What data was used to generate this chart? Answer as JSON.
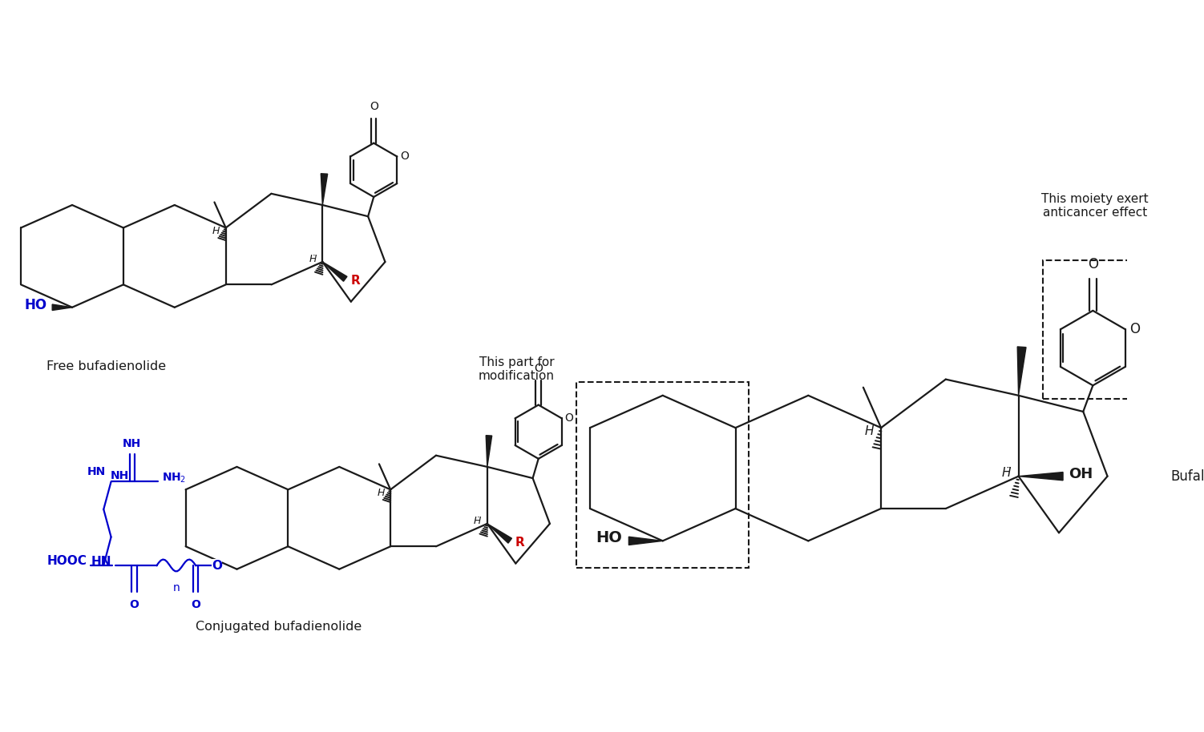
{
  "background_color": "#ffffff",
  "fig_width": 15.02,
  "fig_height": 9.14,
  "labels": {
    "free_bufadienolide": "Free bufadienolide",
    "conjugated_bufadienolide": "Conjugated bufadienolide",
    "bufalin": "Bufalin",
    "moiety_text": "This moiety exert\nanticancer effect",
    "modification_text": "This part for\nmodification"
  },
  "colors": {
    "black": "#1a1a1a",
    "blue": "#0000cc",
    "red": "#cc0000"
  }
}
